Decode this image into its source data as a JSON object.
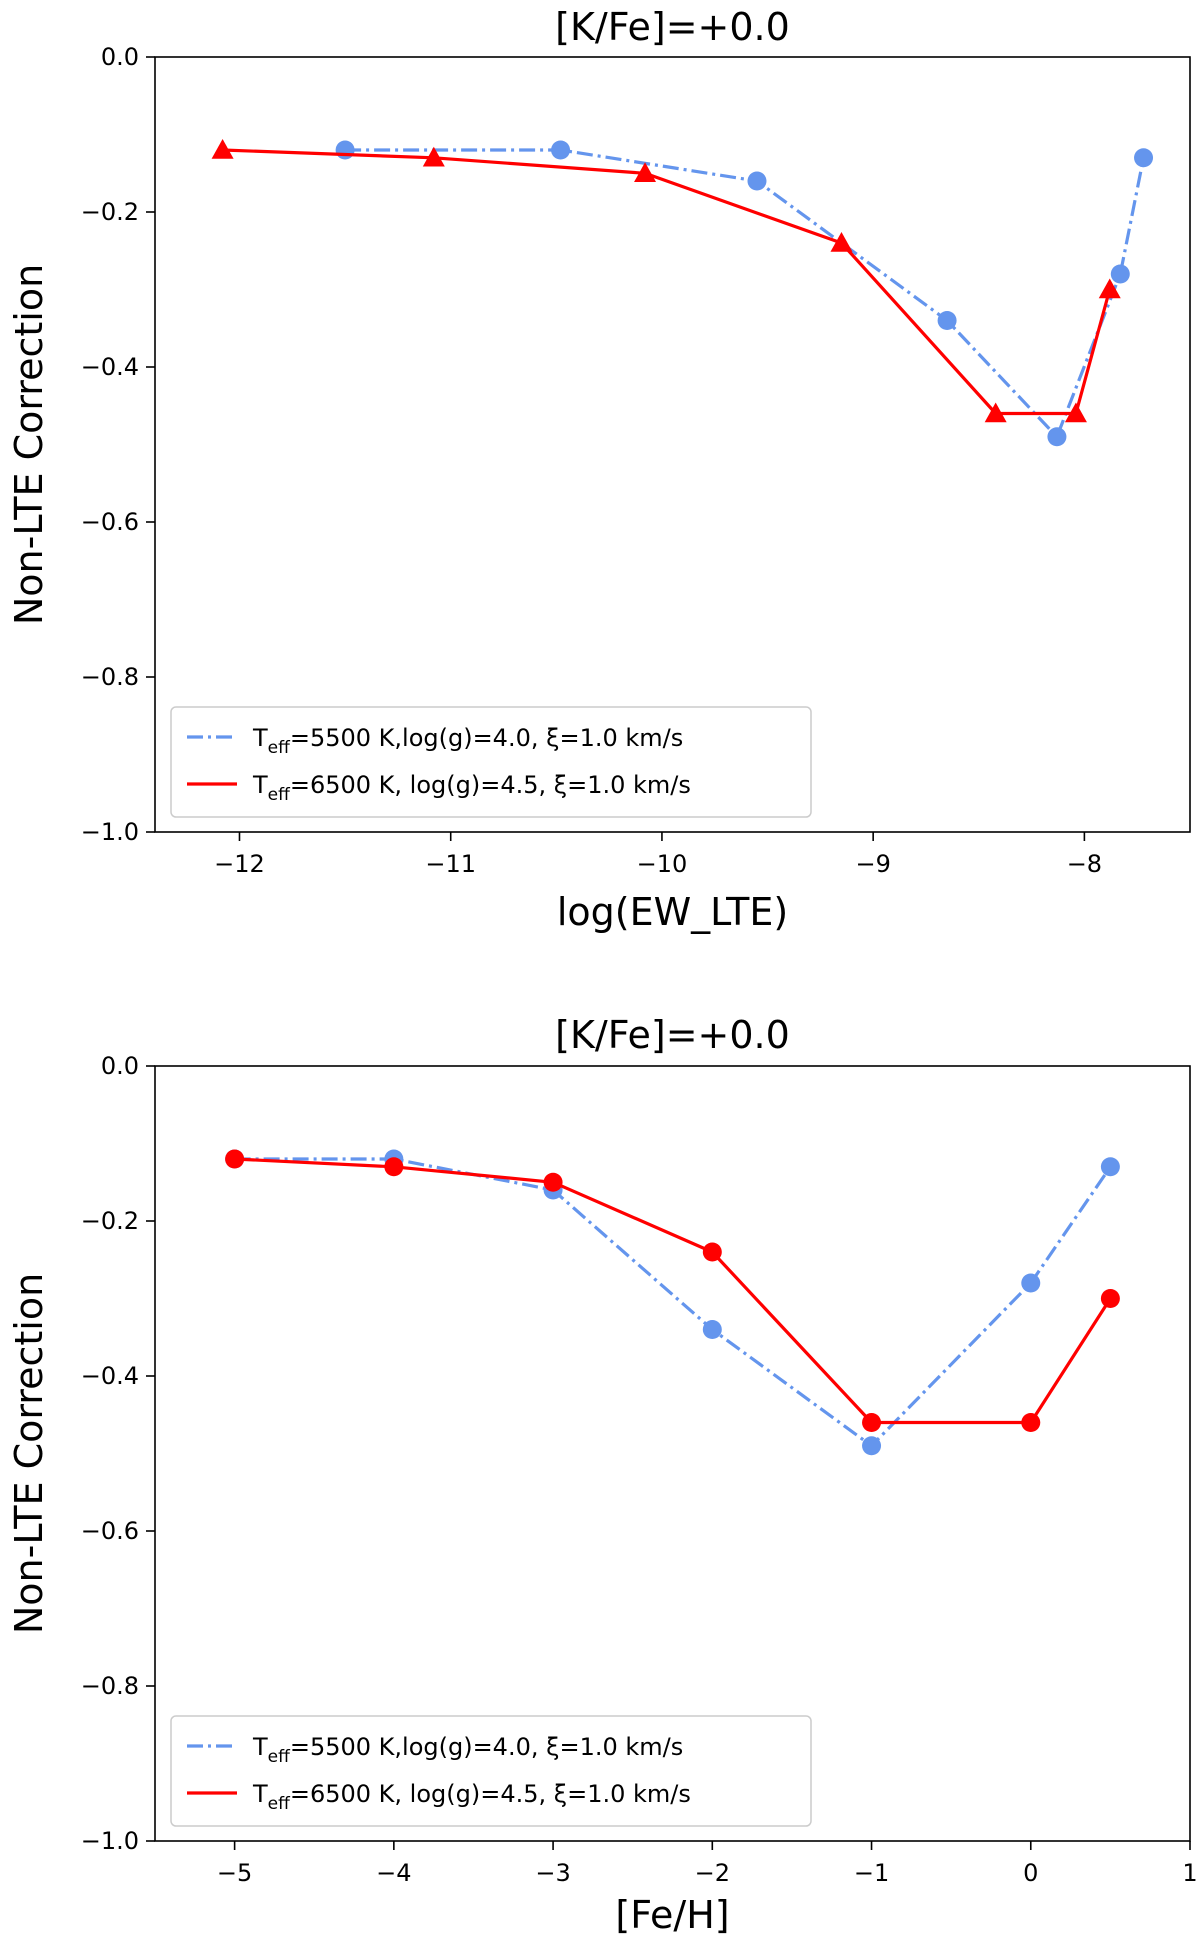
{
  "chart_data": [
    {
      "type": "line",
      "title": "[K/Fe]=+0.0",
      "xlabel": "log(EW_LTE)",
      "ylabel": "Non-LTE Correction",
      "xlim": [
        -12.4,
        -7.5
      ],
      "ylim": [
        -1.0,
        0.0
      ],
      "xticks": [
        -12,
        -11,
        -10,
        -9,
        -8
      ],
      "xtick_labels": [
        "−12",
        "−11",
        "−10",
        "−9",
        "−8"
      ],
      "yticks": [
        0.0,
        -0.2,
        -0.4,
        -0.6,
        -0.8,
        -1.0
      ],
      "ytick_labels": [
        "0.0",
        "−0.2",
        "−0.4",
        "−0.6",
        "−0.8",
        "−1.0"
      ],
      "legend_position": "lower-left",
      "series": [
        {
          "name": "Teff=5500 K,log(g)=4.0, ξ=1.0 km/s",
          "legend": {
            "pre": "T",
            "sub": "eff",
            "post": "=5500 K,log(g)=4.0, ξ=1.0 km/s"
          },
          "color": "#6495ED",
          "linestyle": "dashdot",
          "marker": "circle",
          "x": [
            -11.5,
            -10.48,
            -9.55,
            -8.65,
            -8.13,
            -7.83,
            -7.72
          ],
          "y": [
            -0.12,
            -0.12,
            -0.16,
            -0.34,
            -0.49,
            -0.28,
            -0.13
          ]
        },
        {
          "name": "Teff=6500 K, log(g)=4.5, ξ=1.0 km/s",
          "legend": {
            "pre": "T",
            "sub": "eff",
            "post": "=6500 K, log(g)=4.5, ξ=1.0 km/s"
          },
          "color": "#FF0000",
          "linestyle": "solid",
          "marker": "triangle",
          "x": [
            -12.08,
            -11.08,
            -10.08,
            -9.15,
            -8.42,
            -8.04,
            -7.88
          ],
          "y": [
            -0.12,
            -0.13,
            -0.15,
            -0.24,
            -0.46,
            -0.46,
            -0.3
          ]
        }
      ]
    },
    {
      "type": "line",
      "title": "[K/Fe]=+0.0",
      "xlabel": "[Fe/H]",
      "ylabel": "Non-LTE Correction",
      "xlim": [
        -5.5,
        1.0
      ],
      "ylim": [
        -1.0,
        0.0
      ],
      "xticks": [
        -5,
        -4,
        -3,
        -2,
        -1,
        0,
        1
      ],
      "xtick_labels": [
        "−5",
        "−4",
        "−3",
        "−2",
        "−1",
        "0",
        "1"
      ],
      "yticks": [
        0.0,
        -0.2,
        -0.4,
        -0.6,
        -0.8,
        -1.0
      ],
      "ytick_labels": [
        "0.0",
        "−0.2",
        "−0.4",
        "−0.6",
        "−0.8",
        "−1.0"
      ],
      "legend_position": "lower-left",
      "series": [
        {
          "name": "Teff=5500 K,log(g)=4.0, ξ=1.0 km/s",
          "legend": {
            "pre": "T",
            "sub": "eff",
            "post": "=5500 K,log(g)=4.0, ξ=1.0 km/s"
          },
          "color": "#6495ED",
          "linestyle": "dashdot",
          "marker": "circle",
          "x": [
            -5,
            -4,
            -3,
            -2,
            -1,
            0,
            0.5
          ],
          "y": [
            -0.12,
            -0.12,
            -0.16,
            -0.34,
            -0.49,
            -0.28,
            -0.13
          ]
        },
        {
          "name": "Teff=6500 K, log(g)=4.5, ξ=1.0 km/s",
          "legend": {
            "pre": "T",
            "sub": "eff",
            "post": "=6500 K, log(g)=4.5, ξ=1.0 km/s"
          },
          "color": "#FF0000",
          "linestyle": "solid",
          "marker": "circle",
          "x": [
            -5,
            -4,
            -3,
            -2,
            -1,
            0,
            0.5
          ],
          "y": [
            -0.12,
            -0.13,
            -0.15,
            -0.24,
            -0.46,
            -0.46,
            -0.3
          ]
        }
      ]
    }
  ]
}
